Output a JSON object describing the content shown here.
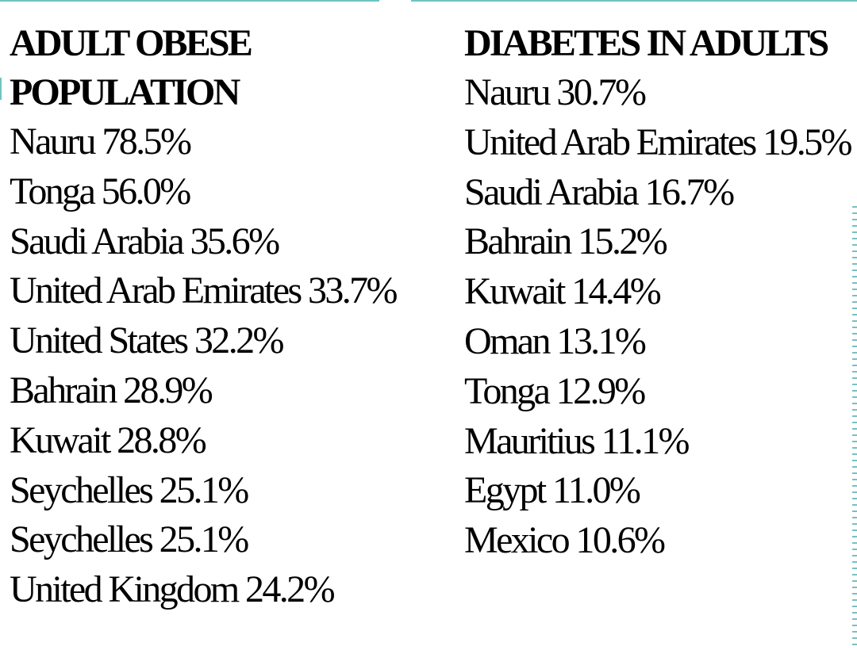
{
  "slide": {
    "accent_color": "#6fc3c3",
    "left": {
      "heading_line1": "ADULT OBESE",
      "heading_line2": "POPULATION",
      "rows": [
        "Nauru 78.5%",
        "Tonga 56.0%",
        "Saudi Arabia 35.6%",
        "United Arab Emirates 33.7%",
        "United States 32.2%",
        "Bahrain 28.9%",
        "Kuwait 28.8%",
        "Seychelles 25.1%",
        "Seychelles 25.1%",
        "United Kingdom 24.2%"
      ]
    },
    "right": {
      "heading": "DIABETES IN ADULTS",
      "rows": [
        "Nauru 30.7%",
        "United Arab Emirates 19.5%",
        "Saudi Arabia 16.7%",
        "Bahrain 15.2%",
        "Kuwait 14.4%",
        "Oman 13.1%",
        "Tonga 12.9%",
        "Mauritius 11.1%",
        "Egypt 11.0%",
        "Mexico 10.6%"
      ]
    }
  }
}
